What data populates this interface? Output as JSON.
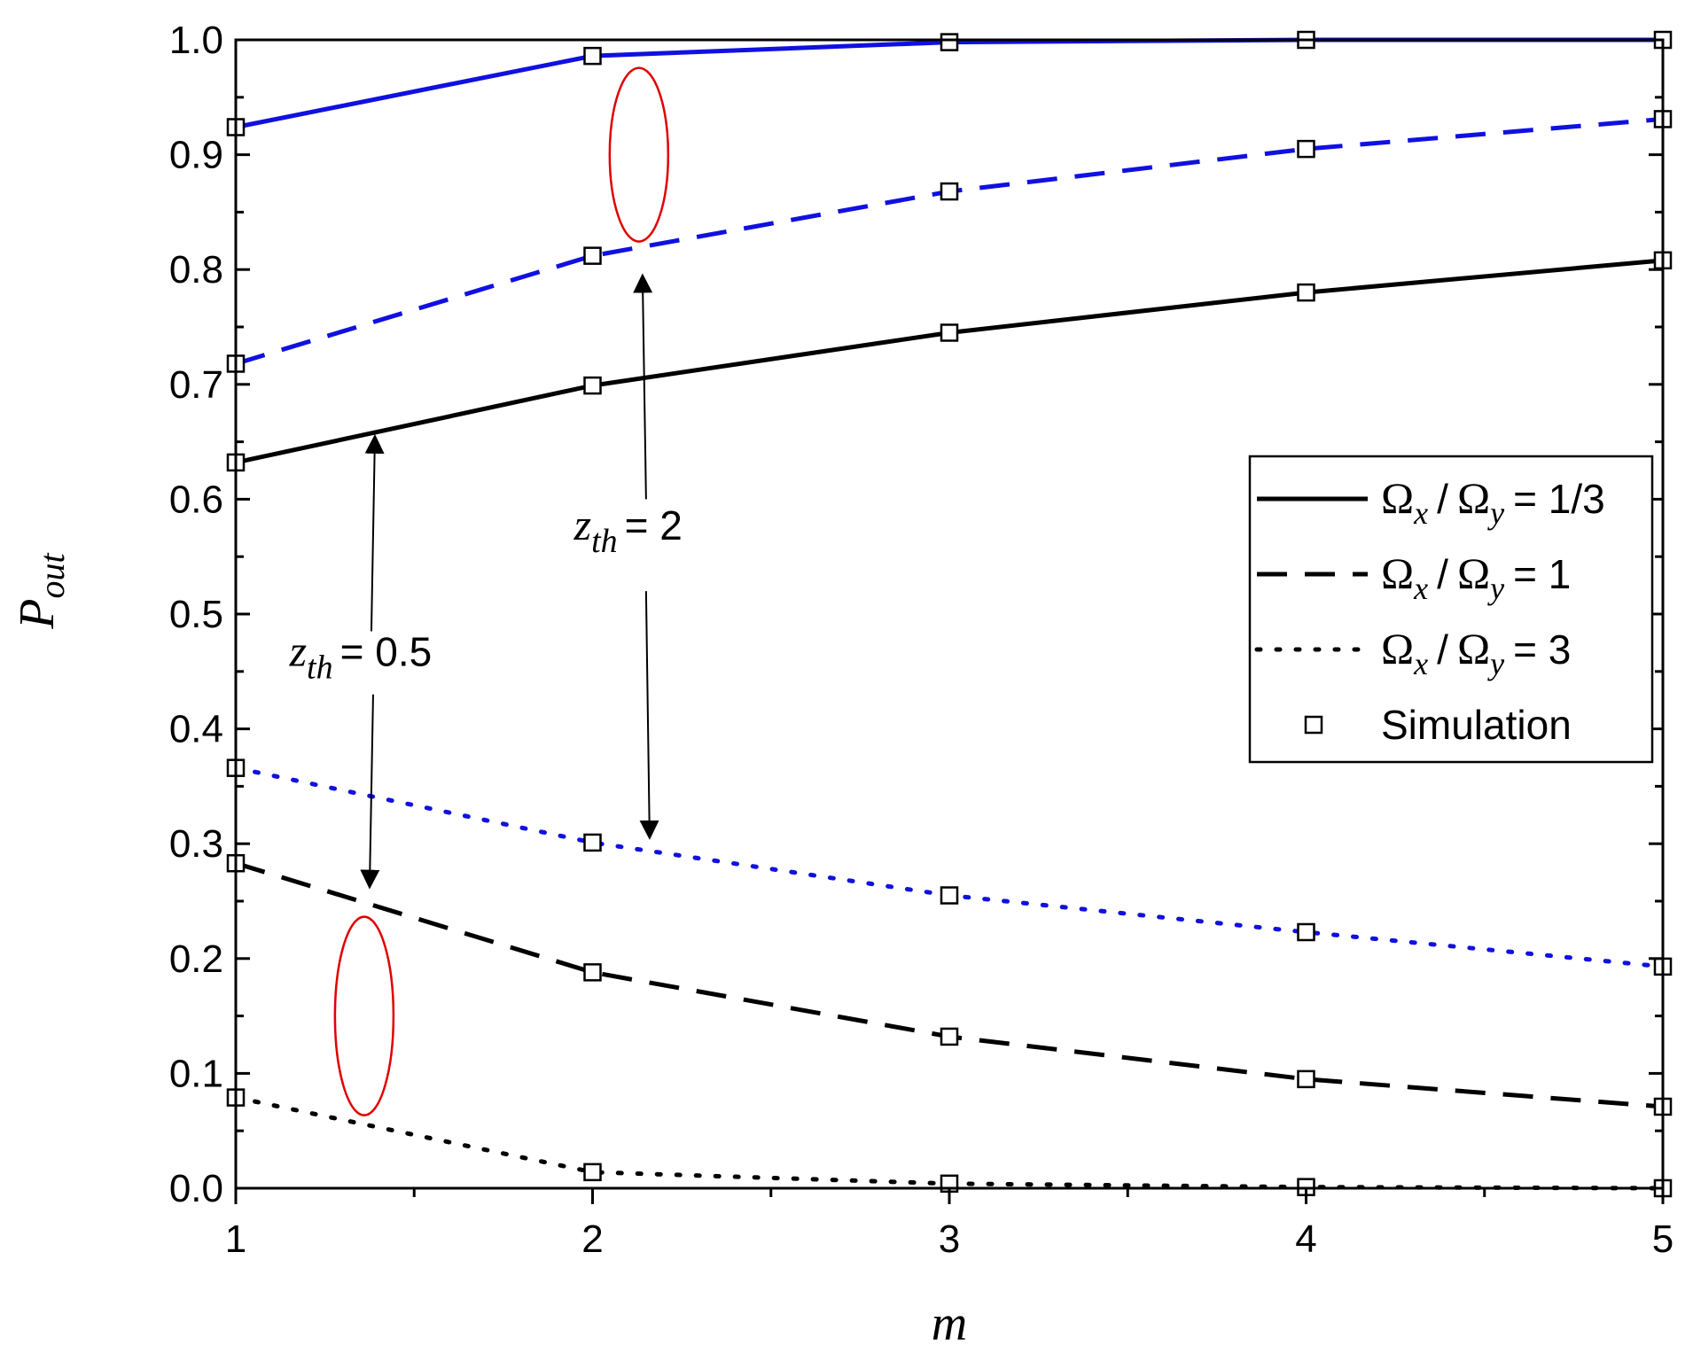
{
  "chart_data": {
    "type": "line",
    "x": [
      1,
      2,
      3,
      4,
      5
    ],
    "xlabel": "m",
    "ylabel": {
      "main": "P",
      "sub": "out"
    },
    "xlim": [
      1,
      5
    ],
    "ylim": [
      0.0,
      1.0
    ],
    "xticks": [
      "1",
      "2",
      "3",
      "4",
      "5"
    ],
    "yticks": [
      "0.0",
      "0.1",
      "0.2",
      "0.3",
      "0.4",
      "0.5",
      "0.6",
      "0.7",
      "0.8",
      "0.9",
      "1.0"
    ],
    "grid": false,
    "legend_position": "right",
    "colors": {
      "blue": "#1010e0",
      "black": "#000000",
      "ellipse": "#e00000"
    },
    "legend": [
      {
        "style": "solid",
        "eq": "= 1/3"
      },
      {
        "style": "dashed",
        "eq": "= 1"
      },
      {
        "style": "dotted",
        "eq": "= 3"
      },
      {
        "style": "marker",
        "label": "Simulation"
      }
    ],
    "legend_symbols": {
      "omega": "Ω",
      "sub_x": "x",
      "sub_y": "y",
      "slash": "/"
    },
    "series": [
      {
        "group": "z_th=2",
        "ratio": "1/3",
        "style": "solid",
        "color": "blue",
        "values": [
          0.924,
          0.986,
          0.998,
          1.0,
          1.0
        ]
      },
      {
        "group": "z_th=2",
        "ratio": "1",
        "style": "dashed",
        "color": "blue",
        "values": [
          0.718,
          0.812,
          0.868,
          0.905,
          0.931
        ]
      },
      {
        "group": "z_th=2",
        "ratio": "3",
        "style": "dotted",
        "color": "blue",
        "values": [
          0.366,
          0.301,
          0.255,
          0.223,
          0.193
        ]
      },
      {
        "group": "z_th=0.5",
        "ratio": "1/3",
        "style": "solid",
        "color": "black",
        "values": [
          0.632,
          0.699,
          0.745,
          0.78,
          0.808
        ]
      },
      {
        "group": "z_th=0.5",
        "ratio": "1",
        "style": "dashed",
        "color": "black",
        "values": [
          0.283,
          0.188,
          0.132,
          0.095,
          0.071
        ]
      },
      {
        "group": "z_th=0.5",
        "ratio": "3",
        "style": "dotted",
        "color": "black",
        "values": [
          0.079,
          0.014,
          0.004,
          0.001,
          0.0
        ]
      }
    ],
    "annotations": [
      {
        "z": "z",
        "sub": "th",
        "text": "= 2",
        "label_x": 2.1,
        "label_y": 0.565
      },
      {
        "z": "z",
        "sub": "th",
        "text": "= 0.5",
        "label_x": 1.35,
        "label_y": 0.455
      }
    ]
  }
}
